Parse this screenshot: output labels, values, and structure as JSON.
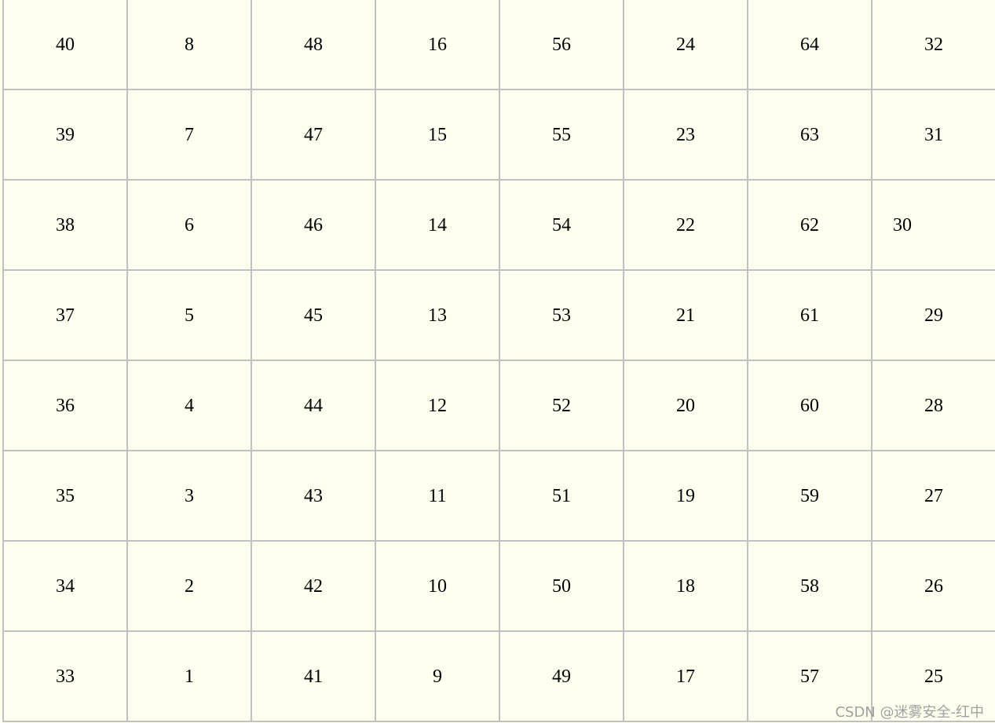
{
  "grid": [
    [
      "40",
      "8",
      "48",
      "16",
      "56",
      "24",
      "64",
      "32"
    ],
    [
      "39",
      "7",
      "47",
      "15",
      "55",
      "23",
      "63",
      "31"
    ],
    [
      "38",
      "6",
      "46",
      "14",
      "54",
      "22",
      "62",
      "30"
    ],
    [
      "37",
      "5",
      "45",
      "13",
      "53",
      "21",
      "61",
      "29"
    ],
    [
      "36",
      "4",
      "44",
      "12",
      "52",
      "20",
      "60",
      "28"
    ],
    [
      "35",
      "3",
      "43",
      "11",
      "51",
      "19",
      "59",
      "27"
    ],
    [
      "34",
      "2",
      "42",
      "10",
      "50",
      "18",
      "58",
      "26"
    ],
    [
      "33",
      "1",
      "41",
      "9",
      "49",
      "17",
      "57",
      "25"
    ]
  ],
  "watermark": "CSDN @迷雾安全-红中",
  "colors": {
    "cell_background": "#fffff0",
    "border": "#c0c0c0"
  }
}
